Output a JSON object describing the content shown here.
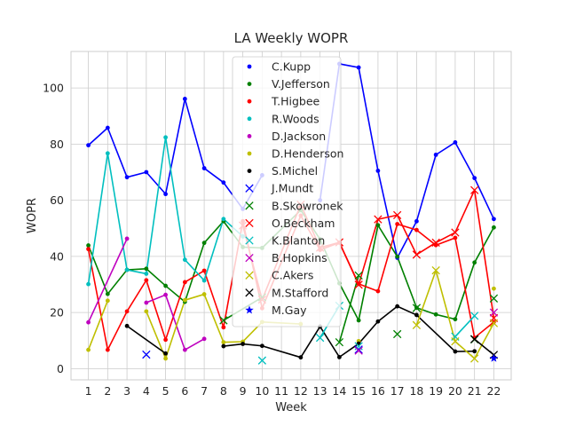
{
  "chart_data": {
    "type": "line",
    "title": "LA Weekly WOPR",
    "xlabel": "Week",
    "ylabel": "WOPR",
    "xlim": [
      0.1,
      22.9
    ],
    "ylim": [
      -4,
      113
    ],
    "x_ticks": [
      1,
      2,
      3,
      4,
      5,
      6,
      7,
      8,
      9,
      10,
      11,
      12,
      13,
      14,
      15,
      16,
      17,
      18,
      19,
      20,
      21,
      22
    ],
    "y_ticks": [
      0,
      20,
      40,
      60,
      80,
      100
    ],
    "grid": true,
    "legend_position": "upper-center",
    "series": [
      {
        "name": "C.Kupp",
        "color": "#0000ff",
        "marker": "dot",
        "x": [
          1,
          2,
          3,
          4,
          5,
          6,
          7,
          8,
          9,
          10,
          12,
          13,
          14,
          15,
          16,
          17,
          18,
          19,
          20,
          21,
          22
        ],
        "y": [
          79.6,
          85.8,
          68.2,
          70.0,
          62.2,
          96.1,
          71.4,
          66.3,
          56.9,
          68.9,
          null,
          60.0,
          108.6,
          107.3,
          70.5,
          39.5,
          52.5,
          76.2,
          80.6,
          67.9,
          53.3
        ]
      },
      {
        "name": "V.Jefferson",
        "color": "#008000",
        "marker": "dot",
        "x": [
          1,
          2,
          3,
          4,
          5,
          6,
          7,
          8,
          9,
          10,
          12,
          13,
          14,
          15,
          16,
          17,
          18,
          19,
          20,
          21,
          22
        ],
        "y": [
          43.9,
          26.6,
          35.2,
          35.6,
          29.5,
          23.8,
          44.8,
          52.5,
          43.3,
          43.0,
          56.5,
          46.1,
          30.4,
          17.2,
          51.1,
          39.9,
          21.7,
          19.3,
          17.6,
          37.8,
          50.3
        ]
      },
      {
        "name": "T.Higbee",
        "color": "#ff0000",
        "marker": "dot",
        "x": [
          1,
          2,
          3,
          4,
          5,
          6,
          7,
          8,
          9,
          10,
          12,
          13,
          14,
          15,
          16,
          17,
          18,
          19,
          20,
          21,
          22
        ],
        "y": [
          42.6,
          6.7,
          20.4,
          31.5,
          10.3,
          30.8,
          34.9,
          14.7,
          52.5,
          21.5,
          54.5,
          42.3,
          44.9,
          30.2,
          27.6,
          51.5,
          49.4,
          44.0,
          46.6,
          11.0,
          16.6
        ]
      },
      {
        "name": "R.Woods",
        "color": "#00bfbf",
        "marker": "dot",
        "x": [
          1,
          2,
          3,
          4,
          5,
          6,
          7,
          8,
          9
        ],
        "y": [
          30.1,
          76.7,
          35.2,
          33.8,
          82.4,
          38.8,
          31.4,
          53.3,
          47.1
        ]
      },
      {
        "name": "D.Jackson",
        "color": "#bf00bf",
        "marker": "dot",
        "x": [
          1,
          3,
          4,
          5,
          6,
          7
        ],
        "y": [
          16.5,
          46.3,
          23.5,
          26.3,
          6.7,
          10.6
        ],
        "breaks_after": [
          1
        ]
      },
      {
        "name": "D.Henderson",
        "color": "#bfbf00",
        "marker": "dot",
        "x": [
          1,
          2,
          4,
          5,
          6,
          7,
          8,
          9,
          10,
          12,
          15,
          22
        ],
        "y": [
          6.7,
          24.2,
          20.4,
          3.6,
          24.4,
          26.5,
          9.4,
          9.6,
          16.6,
          15.9,
          9.8,
          28.5
        ],
        "breaks_after": [
          1,
          9,
          10
        ]
      },
      {
        "name": "S.Michel",
        "color": "#000000",
        "marker": "dot",
        "x": [
          3,
          5,
          8,
          9,
          10,
          12,
          13,
          14,
          15,
          16,
          17,
          18,
          20,
          21
        ],
        "y": [
          15.2,
          5.4,
          8.0,
          8.8,
          8.1,
          4.0,
          15.0,
          4.1,
          8.9,
          16.8,
          22.2,
          19.1,
          6.1,
          6.2
        ],
        "breaks_after": [
          1
        ]
      },
      {
        "name": "J.Mundt",
        "color": "#0000ff",
        "marker": "x",
        "x": [
          4,
          15
        ],
        "y": [
          5.0,
          6.8
        ],
        "breaks_after": [
          0
        ]
      },
      {
        "name": "B.Skowronek",
        "color": "#008000",
        "marker": "x",
        "x": [
          8,
          10,
          14,
          15,
          17,
          18,
          21,
          22
        ],
        "y": [
          17.2,
          25.4,
          9.4,
          33.2,
          12.3,
          21.6,
          10.4,
          25.0
        ],
        "breaks_after": [
          1,
          3,
          4,
          5,
          6
        ]
      },
      {
        "name": "O.Beckham",
        "color": "#ff0000",
        "marker": "x",
        "x": [
          9,
          10,
          12,
          13,
          14,
          15,
          16,
          17,
          18,
          19,
          20,
          21,
          22
        ],
        "y": [
          51.0,
          24.6,
          58.4,
          43.1,
          45.0,
          29.9,
          53.2,
          54.7,
          40.6,
          44.9,
          48.5,
          63.6,
          18.0
        ]
      },
      {
        "name": "K.Blanton",
        "color": "#00bfbf",
        "marker": "x",
        "x": [
          10,
          13,
          14,
          15,
          20,
          21
        ],
        "y": [
          2.9,
          11.0,
          22.4,
          8.0,
          11.4,
          18.8
        ],
        "breaks_after": [
          0,
          2,
          3
        ]
      },
      {
        "name": "B.Hopkins",
        "color": "#bf00bf",
        "marker": "x",
        "x": [
          15,
          22
        ],
        "y": [
          6.4,
          20.0
        ],
        "breaks_after": [
          0
        ]
      },
      {
        "name": "C.Akers",
        "color": "#bfbf00",
        "marker": "x",
        "x": [
          18,
          19,
          20,
          21,
          22
        ],
        "y": [
          15.5,
          35.0,
          9.7,
          3.6,
          16.2
        ]
      },
      {
        "name": "M.Stafford",
        "color": "#000000",
        "marker": "x",
        "x": [
          21,
          22
        ],
        "y": [
          10.5,
          4.9
        ]
      },
      {
        "name": "M.Gay",
        "color": "#0000ff",
        "marker": "star",
        "x": [
          22
        ],
        "y": [
          3.7
        ]
      }
    ]
  }
}
